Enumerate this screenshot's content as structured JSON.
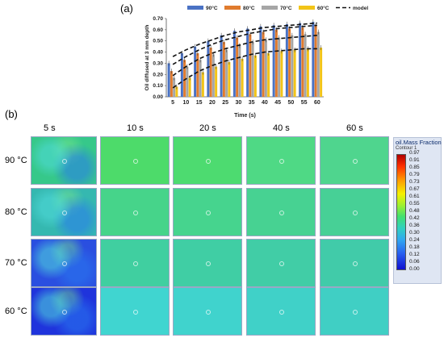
{
  "panel_a_label": "(a)",
  "panel_b_label": "(b)",
  "chart_data": {
    "type": "bar",
    "xlabel": "Time (s)",
    "ylabel": "Oil diffused at 3 mm depth",
    "ylim": [
      0,
      0.7
    ],
    "yticks": [
      "0.00",
      "0.10",
      "0.20",
      "0.30",
      "0.40",
      "0.50",
      "0.60",
      "0.70"
    ],
    "categories": [
      "5",
      "10",
      "15",
      "20",
      "25",
      "30",
      "35",
      "40",
      "45",
      "50",
      "55",
      "60"
    ],
    "legend_position": "top",
    "series": [
      {
        "name": "90°C",
        "color": "#4a72c4",
        "values": [
          0.3,
          0.39,
          0.45,
          0.5,
          0.55,
          0.59,
          0.61,
          0.63,
          0.64,
          0.65,
          0.66,
          0.67
        ]
      },
      {
        "name": "80°C",
        "color": "#e07b2e",
        "values": [
          0.23,
          0.33,
          0.39,
          0.44,
          0.49,
          0.53,
          0.56,
          0.58,
          0.6,
          0.61,
          0.62,
          0.64
        ]
      },
      {
        "name": "70°C",
        "color": "#a6a6a6",
        "values": [
          0.17,
          0.27,
          0.33,
          0.38,
          0.42,
          0.46,
          0.49,
          0.51,
          0.53,
          0.55,
          0.56,
          0.58
        ]
      },
      {
        "name": "60°C",
        "color": "#f2c418",
        "values": [
          0.09,
          0.17,
          0.22,
          0.27,
          0.31,
          0.34,
          0.37,
          0.39,
          0.41,
          0.42,
          0.43,
          0.44
        ]
      }
    ],
    "model": {
      "name": "model",
      "curves": [
        [
          0.36,
          0.42,
          0.47,
          0.51,
          0.55,
          0.58,
          0.6,
          0.62,
          0.63,
          0.64,
          0.65,
          0.66
        ],
        [
          0.29,
          0.36,
          0.42,
          0.47,
          0.51,
          0.54,
          0.57,
          0.59,
          0.61,
          0.62,
          0.63,
          0.64
        ],
        [
          0.19,
          0.27,
          0.34,
          0.39,
          0.43,
          0.46,
          0.49,
          0.51,
          0.52,
          0.53,
          0.54,
          0.55
        ],
        [
          0.08,
          0.16,
          0.23,
          0.28,
          0.32,
          0.35,
          0.38,
          0.4,
          0.41,
          0.42,
          0.43,
          0.43
        ]
      ]
    }
  },
  "contour_grid": {
    "columns": [
      "5 s",
      "10 s",
      "20 s",
      "40 s",
      "60 s"
    ],
    "rows": [
      "90 °C",
      "80 °C",
      "70 °C",
      "60 °C"
    ],
    "cell_colors": [
      [
        "#36c88a",
        "#4ddb6a",
        "#4ddb70",
        "#4fd985",
        "#4fd58e"
      ],
      [
        "#35b8b0",
        "#46d48a",
        "#46d48e",
        "#47d292",
        "#47d096"
      ],
      [
        "#2a4fe0",
        "#40cfa0",
        "#40cea4",
        "#41cda6",
        "#41cba9"
      ],
      [
        "#1f34dc",
        "#40d5d0",
        "#40d3cd",
        "#40d1c8",
        "#40cfc4"
      ]
    ]
  },
  "colorbar": {
    "title": "oil.Mass Fraction",
    "subtitle": "Contour 1",
    "ticks": [
      "0.97",
      "0.91",
      "0.85",
      "0.79",
      "0.73",
      "0.67",
      "0.61",
      "0.55",
      "0.48",
      "0.42",
      "0.36",
      "0.30",
      "0.24",
      "0.18",
      "0.12",
      "0.06",
      "0.00"
    ]
  }
}
